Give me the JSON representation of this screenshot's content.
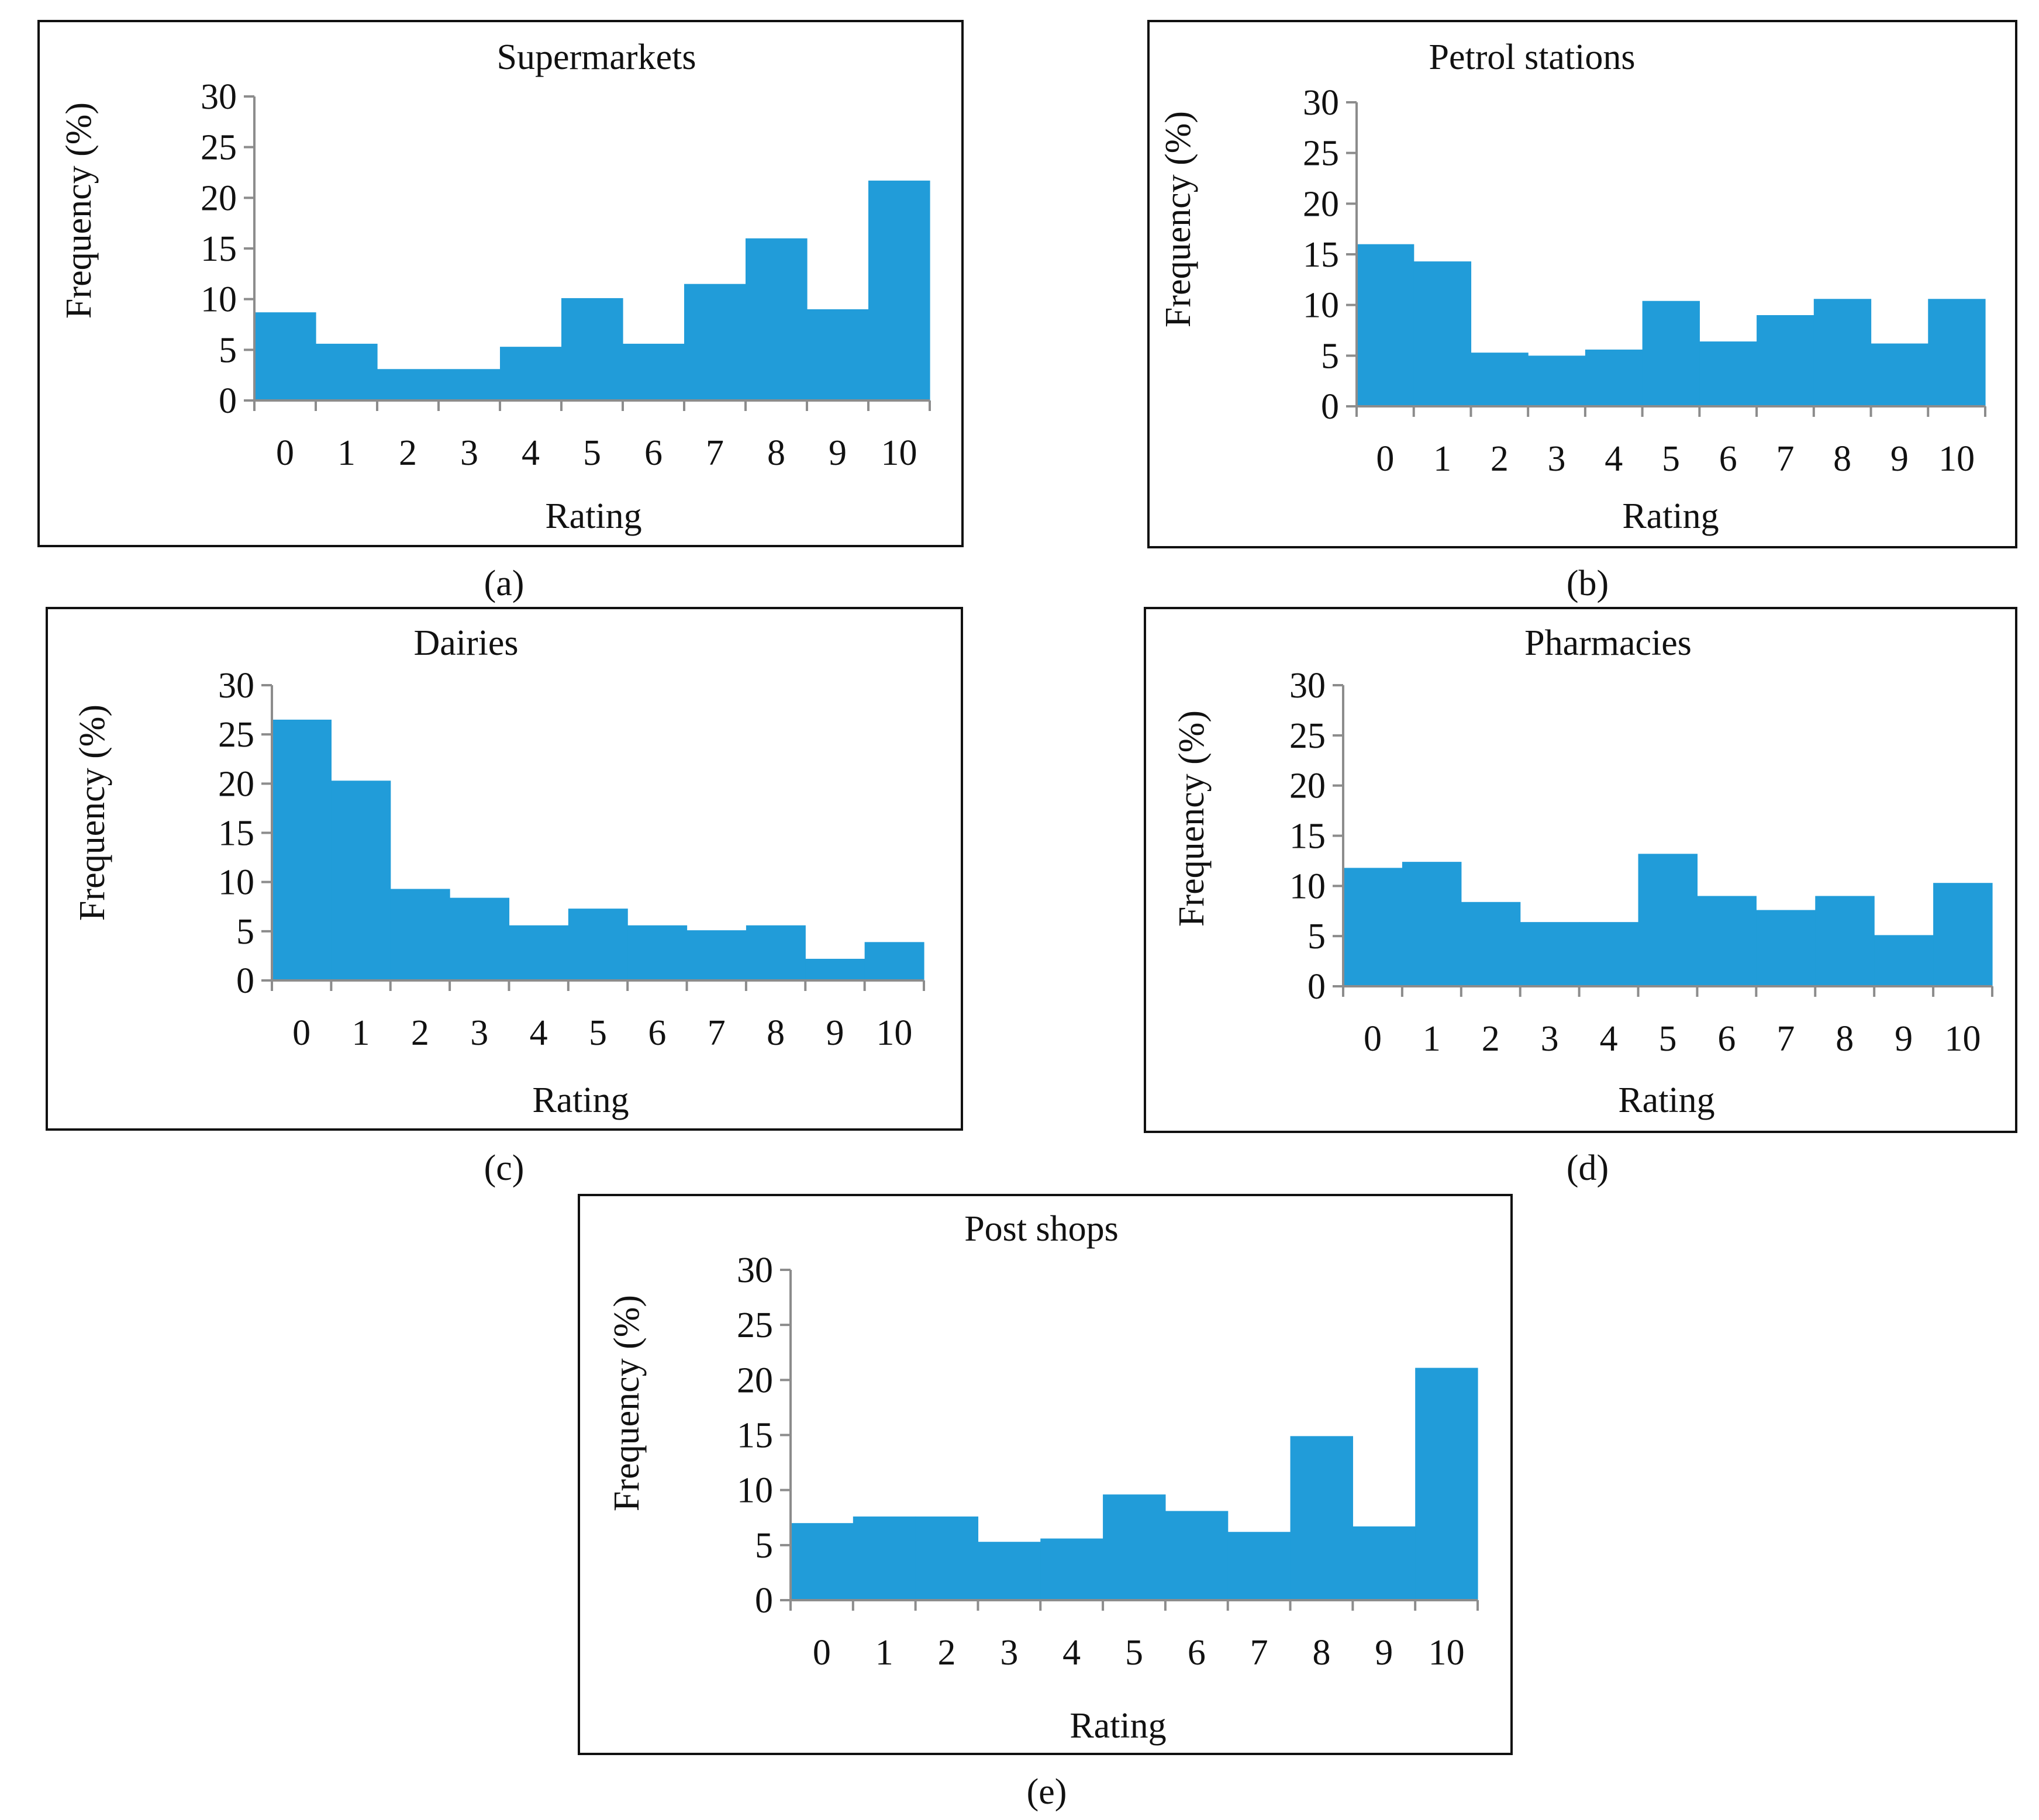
{
  "figure_title": "",
  "colors": {
    "bar": "#219cd9",
    "axis": "#8c8c8c",
    "frame": "#111111",
    "text": "#111111"
  },
  "chart_data": [
    {
      "type": "bar",
      "panel": "(a)",
      "title": "Supermarkets",
      "xlabel": "Rating",
      "ylabel": "Frequency (%)",
      "categories": [
        "0",
        "1",
        "2",
        "3",
        "4",
        "5",
        "6",
        "7",
        "8",
        "9",
        "10"
      ],
      "values": [
        8.7,
        5.6,
        3.1,
        3.1,
        5.3,
        10.1,
        5.6,
        11.5,
        16.0,
        9.0,
        21.7
      ],
      "ylim": [
        0,
        30
      ],
      "yticks": [
        "0",
        "5",
        "10",
        "15",
        "20",
        "25",
        "30"
      ],
      "grid": false,
      "legend": "none"
    },
    {
      "type": "bar",
      "panel": "(b)",
      "title": "Petrol stations",
      "xlabel": "Rating",
      "ylabel": "Frequency (%)",
      "categories": [
        "0",
        "1",
        "2",
        "3",
        "4",
        "5",
        "6",
        "7",
        "8",
        "9",
        "10"
      ],
      "values": [
        16.0,
        14.3,
        5.3,
        5.0,
        5.6,
        10.4,
        6.4,
        9.0,
        10.6,
        6.2,
        10.6
      ],
      "ylim": [
        0,
        30
      ],
      "yticks": [
        "0",
        "5",
        "10",
        "15",
        "20",
        "25",
        "30"
      ],
      "grid": false,
      "legend": "none"
    },
    {
      "type": "bar",
      "panel": "(c)",
      "title": "Dairies",
      "xlabel": "Rating",
      "ylabel": "Frequency (%)",
      "categories": [
        "0",
        "1",
        "2",
        "3",
        "4",
        "5",
        "6",
        "7",
        "8",
        "9",
        "10"
      ],
      "values": [
        26.5,
        20.3,
        9.3,
        8.4,
        5.6,
        7.3,
        5.6,
        5.1,
        5.6,
        2.2,
        3.9
      ],
      "ylim": [
        0,
        30
      ],
      "yticks": [
        "0",
        "5",
        "10",
        "15",
        "20",
        "25",
        "30"
      ],
      "grid": false,
      "legend": "none"
    },
    {
      "type": "bar",
      "panel": "(d)",
      "title": "Pharmacies",
      "xlabel": "Rating",
      "ylabel": "Frequency (%)",
      "categories": [
        "0",
        "1",
        "2",
        "3",
        "4",
        "5",
        "6",
        "7",
        "8",
        "9",
        "10"
      ],
      "values": [
        11.8,
        12.4,
        8.4,
        6.4,
        6.4,
        13.2,
        9.0,
        7.6,
        9.0,
        5.1,
        10.3
      ],
      "ylim": [
        0,
        30
      ],
      "yticks": [
        "0",
        "5",
        "10",
        "15",
        "20",
        "25",
        "30"
      ],
      "grid": false,
      "legend": "none"
    },
    {
      "type": "bar",
      "panel": "(e)",
      "title": "Post shops",
      "xlabel": "Rating",
      "ylabel": "Frequency (%)",
      "categories": [
        "0",
        "1",
        "2",
        "3",
        "4",
        "5",
        "6",
        "7",
        "8",
        "9",
        "10"
      ],
      "values": [
        7.0,
        7.6,
        7.6,
        5.3,
        5.6,
        9.6,
        8.1,
        6.2,
        14.9,
        6.7,
        21.1
      ],
      "ylim": [
        0,
        30
      ],
      "yticks": [
        "0",
        "5",
        "10",
        "15",
        "20",
        "25",
        "30"
      ],
      "grid": false,
      "legend": "none"
    }
  ]
}
